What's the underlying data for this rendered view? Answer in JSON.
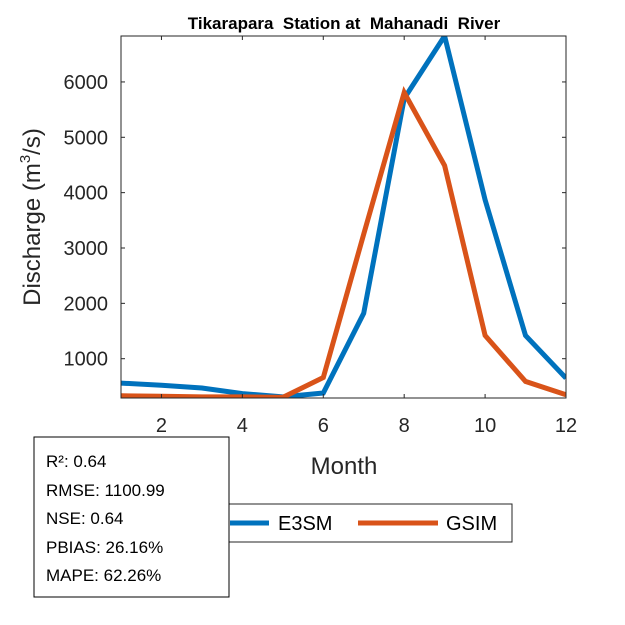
{
  "chart_data": {
    "type": "line",
    "title": "Tikarapara  Station at  Mahanadi  River",
    "xlabel": "Month",
    "ylabel_prefix": "Discharge (m",
    "ylabel_superscript": "3",
    "ylabel_suffix": "/s)",
    "xlim": [
      1,
      12
    ],
    "ylim": [
      290,
      6830
    ],
    "xticks": [
      2,
      4,
      6,
      8,
      10,
      12
    ],
    "yticks": [
      1000,
      2000,
      3000,
      4000,
      5000,
      6000
    ],
    "x": [
      1,
      2,
      3,
      4,
      5,
      6,
      7,
      8,
      9,
      10,
      11,
      12
    ],
    "series": [
      {
        "name": "E3SM",
        "color": "#0072BD",
        "values": [
          560,
          520,
          470,
          370,
          310,
          380,
          1820,
          5700,
          6830,
          3870,
          1420,
          650
        ]
      },
      {
        "name": "GSIM",
        "color": "#D95319",
        "values": [
          330,
          320,
          310,
          310,
          300,
          660,
          3250,
          5810,
          4490,
          1420,
          590,
          350
        ]
      }
    ],
    "grid": false,
    "legend_position": "bottom"
  },
  "stats": {
    "r2": "R²: 0.64",
    "rmse": "RMSE: 1100.99",
    "nse": "NSE: 0.64",
    "pbias": "PBIAS: 26.16%",
    "mape": "MAPE: 62.26%"
  }
}
